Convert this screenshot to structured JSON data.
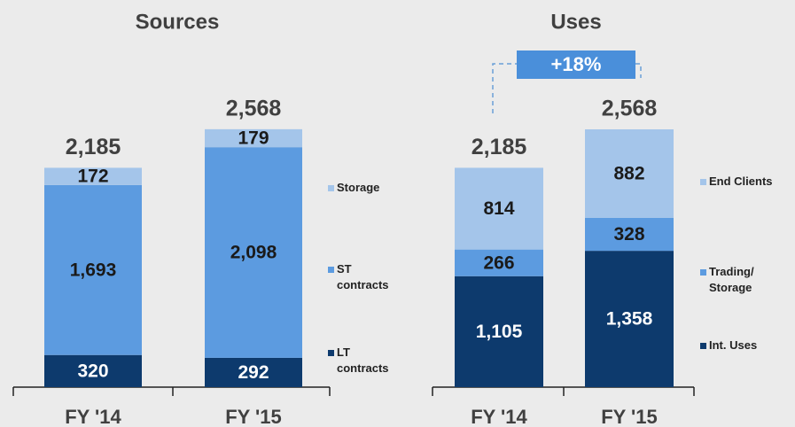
{
  "chart_data": [
    {
      "type": "stacked-bar",
      "title": "Sources",
      "categories": [
        "FY '14",
        "FY '15"
      ],
      "series": [
        {
          "name": "LT contracts",
          "color": "#0d3a6d",
          "values": [
            320,
            292
          ]
        },
        {
          "name": "ST contracts",
          "color": "#5c9be0",
          "values": [
            1693,
            2098
          ],
          "value_labels": [
            "1,693",
            "2,098"
          ]
        },
        {
          "name": "Storage",
          "color": "#a4c5ea",
          "values": [
            172,
            179
          ]
        }
      ],
      "totals": [
        2185,
        2568
      ],
      "total_labels": [
        "2,185",
        "2,568"
      ]
    },
    {
      "type": "stacked-bar",
      "title": "Uses",
      "categories": [
        "FY '14",
        "FY '15"
      ],
      "series": [
        {
          "name": "Int. Uses",
          "color": "#0d3a6d",
          "values": [
            1105,
            1358
          ],
          "value_labels": [
            "1,105",
            "1,358"
          ]
        },
        {
          "name": "Trading/ Storage",
          "color": "#5c9be0",
          "values": [
            266,
            328
          ]
        },
        {
          "name": "End Clients",
          "color": "#a4c5ea",
          "values": [
            814,
            882
          ]
        }
      ],
      "totals": [
        2185,
        2568
      ],
      "total_labels": [
        "2,185",
        "2,568"
      ],
      "annotation": "+18%"
    }
  ]
}
